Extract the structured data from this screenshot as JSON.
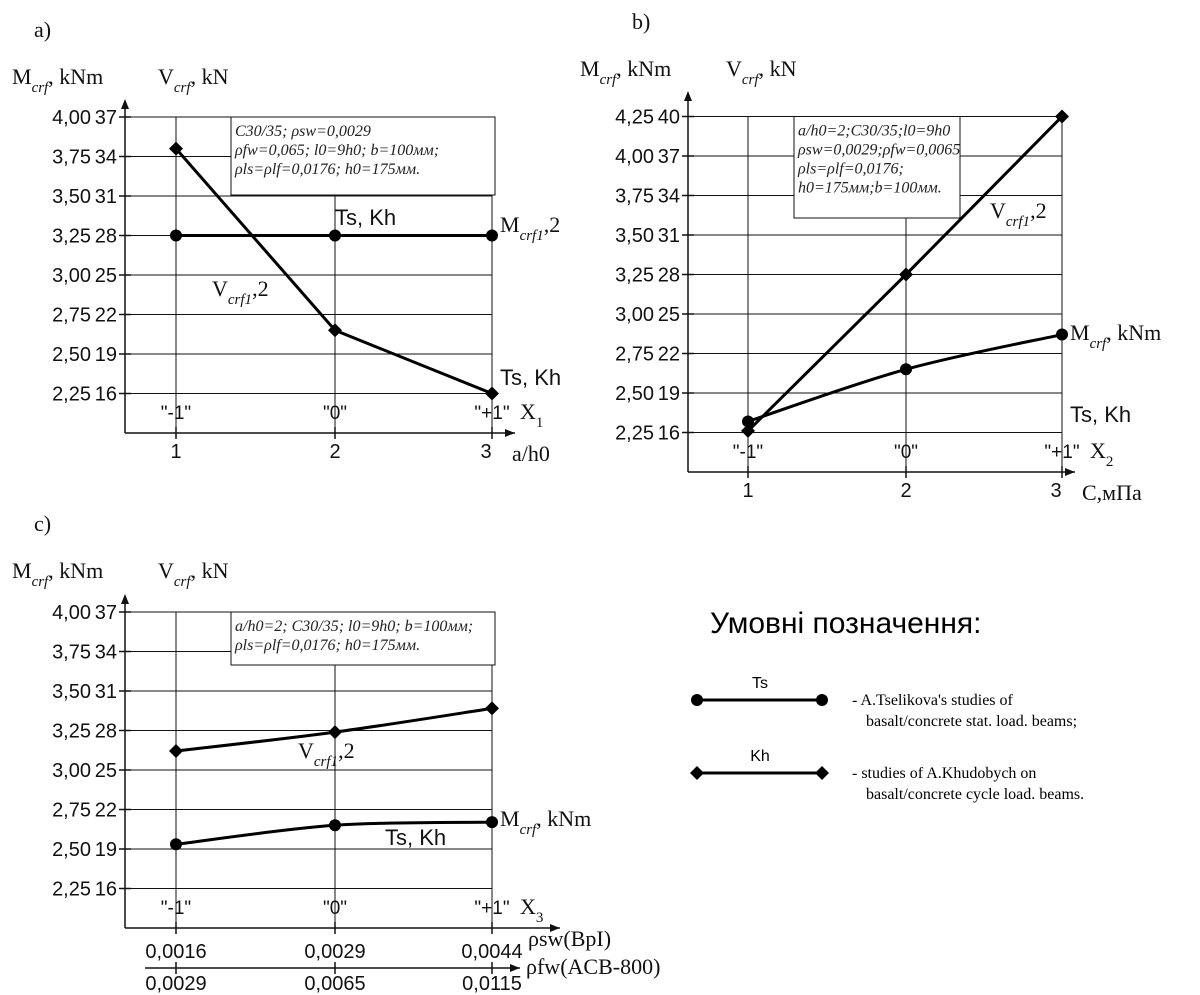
{
  "chart_data": [
    {
      "panel": "a)",
      "type": "line",
      "left_axis_label": "M_crf, kNm",
      "right_axis_label": "V_crf, kN",
      "m_ticks": [
        "2,25",
        "2,50",
        "2,75",
        "3,00",
        "3,25",
        "3,50",
        "3,75",
        "4,00"
      ],
      "v_ticks": [
        "16",
        "19",
        "22",
        "25",
        "28",
        "31",
        "34",
        "37"
      ],
      "ylim_m": [
        2.0,
        4.0
      ],
      "x_ticks": [
        "1",
        "2",
        "3"
      ],
      "coded_levels": [
        "\"-1\"",
        "\"0\"",
        "\"+1\""
      ],
      "factor_label": "X1",
      "x_axis_label": "a/h0",
      "note_lines": [
        "C30/35; ρsw=0,0029",
        "ρfw=0,065; l0=9h0; b=100мм;",
        "ρls=ρlf=0,0176; h0=175мм."
      ],
      "series": [
        {
          "name": "M_crf1,2",
          "marker": "circle",
          "x": [
            1,
            2,
            3
          ],
          "m_values": [
            3.25,
            3.25,
            3.25
          ]
        },
        {
          "name": "V_crf1,2",
          "marker": "diamond",
          "x": [
            1,
            2,
            3
          ],
          "m_values": [
            3.8,
            2.65,
            2.25
          ]
        }
      ],
      "annotations": [
        "Ts, Kh",
        "M_crf1,2",
        "V_crf1,2",
        "Ts, Kh"
      ]
    },
    {
      "panel": "b)",
      "type": "line",
      "left_axis_label": "M_crf, kNm",
      "right_axis_label": "V_crf, kN",
      "m_ticks": [
        "2,25",
        "2,50",
        "2,75",
        "3,00",
        "3,25",
        "3,50",
        "3,75",
        "4,00",
        "4,25"
      ],
      "v_ticks": [
        "16",
        "19",
        "22",
        "25",
        "28",
        "31",
        "34",
        "37",
        "40"
      ],
      "ylim_m": [
        2.0,
        4.25
      ],
      "x_ticks": [
        "1",
        "2",
        "3"
      ],
      "coded_levels": [
        "\"-1\"",
        "\"0\"",
        "\"+1\""
      ],
      "factor_label": "X2",
      "x_axis_label": "C,мПа",
      "note_lines": [
        "a/h0=2;C30/35;l0=9h0",
        "ρsw=0,0029;ρfw=0,0065",
        "ρls=ρlf=0,0176;",
        "h0=175мм;b=100мм."
      ],
      "series": [
        {
          "name": "V_crf1,2",
          "marker": "diamond",
          "x": [
            1,
            2,
            3
          ],
          "m_values": [
            2.26,
            3.25,
            4.25
          ]
        },
        {
          "name": "M_crf, kNm",
          "marker": "circle",
          "x": [
            1,
            2,
            3
          ],
          "m_values": [
            2.32,
            2.65,
            2.87
          ]
        }
      ],
      "annotations": [
        "V_crf1,2",
        "M_crf, kNm",
        "Ts, Kh"
      ]
    },
    {
      "panel": "c)",
      "type": "line",
      "left_axis_label": "M_crf, kNm",
      "right_axis_label": "V_crf, kN",
      "m_ticks": [
        "2,25",
        "2,50",
        "2,75",
        "3,00",
        "3,25",
        "3,50",
        "3,75",
        "4,00"
      ],
      "v_ticks": [
        "16",
        "19",
        "22",
        "25",
        "28",
        "31",
        "34",
        "37"
      ],
      "ylim_m": [
        2.0,
        4.0
      ],
      "x_ticks": [
        "1",
        "2",
        "3"
      ],
      "coded_levels": [
        "\"-1\"",
        "\"0\"",
        "\"+1\""
      ],
      "factor_label": "X3",
      "x_axis_1_ticks": [
        "0,0016",
        "0,0029",
        "0,0044"
      ],
      "x_axis_1_label": "ρsw(BpI)",
      "x_axis_2_ticks": [
        "0,0029",
        "0,0065",
        "0,0115"
      ],
      "x_axis_2_label": "ρfw(ACB-800)",
      "note_lines": [
        "a/h0=2; C30/35; l0=9h0; b=100мм;",
        "ρls=ρlf=0,0176; h0=175мм."
      ],
      "series": [
        {
          "name": "V_crf1,2",
          "marker": "diamond",
          "x": [
            1,
            2,
            3
          ],
          "m_values": [
            3.12,
            3.24,
            3.39
          ]
        },
        {
          "name": "M_crf, kNm",
          "marker": "circle",
          "x": [
            1,
            2,
            3
          ],
          "m_values": [
            2.53,
            2.65,
            2.67
          ]
        }
      ],
      "annotations": [
        "V_crf1,2",
        "M_crf, kNm",
        "Ts, Kh"
      ]
    }
  ],
  "legend": {
    "title": "Умовні позначення:",
    "items": [
      {
        "key": "Ts",
        "marker": "circle",
        "text_1": "- A.Tselikova's studies of",
        "text_2": "basalt/concrete stat. load. beams;"
      },
      {
        "key": "Kh",
        "marker": "diamond",
        "text_1": "- studies of A.Khudobych on",
        "text_2": "basalt/concrete cycle load. beams."
      }
    ]
  }
}
